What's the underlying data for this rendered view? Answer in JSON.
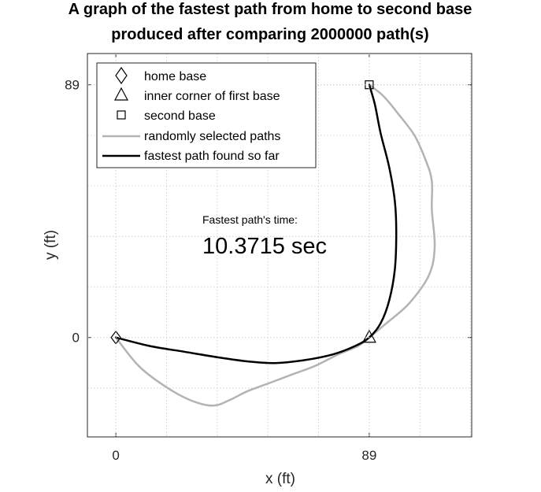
{
  "chart_data": {
    "type": "line",
    "title": "A graph of the fastest path from home to second base",
    "subtitle": "produced after comparing 2000000 path(s)",
    "xlabel": "x (ft)",
    "ylabel": "y (ft)",
    "xlim": [
      -10,
      125
    ],
    "ylim": [
      -35,
      100
    ],
    "xticks": [
      0,
      89
    ],
    "yticks": [
      0,
      89
    ],
    "xtick_labels": [
      "0",
      "89"
    ],
    "ytick_labels": [
      "0",
      "89"
    ],
    "grid": "dotted",
    "legend_position": "top-left",
    "markers": [
      {
        "name": "home base",
        "shape": "diamond",
        "x": 0,
        "y": 0
      },
      {
        "name": "inner corner of first base",
        "shape": "triangle",
        "x": 89,
        "y": 0
      },
      {
        "name": "second base",
        "shape": "square",
        "x": 89,
        "y": 89
      }
    ],
    "series": [
      {
        "name": "randomly selected paths",
        "color": "#b3b3b3",
        "points": [
          [
            0,
            0
          ],
          [
            8,
            -10
          ],
          [
            17,
            -17
          ],
          [
            26,
            -22
          ],
          [
            34,
            -24
          ],
          [
            40,
            -22
          ],
          [
            46,
            -19
          ],
          [
            54,
            -16
          ],
          [
            62,
            -13
          ],
          [
            70,
            -10
          ],
          [
            78,
            -6
          ],
          [
            85,
            -3
          ],
          [
            89,
            0
          ],
          [
            95,
            5
          ],
          [
            103,
            12
          ],
          [
            110,
            22
          ],
          [
            112,
            32
          ],
          [
            111,
            45
          ],
          [
            111,
            55
          ],
          [
            109,
            62
          ],
          [
            105,
            71
          ],
          [
            99,
            79
          ],
          [
            94,
            85
          ],
          [
            89,
            89
          ]
        ]
      },
      {
        "name": "fastest path found so far",
        "color": "#000000",
        "points": [
          [
            0,
            0
          ],
          [
            12,
            -3
          ],
          [
            24,
            -5
          ],
          [
            36,
            -7
          ],
          [
            47,
            -8.5
          ],
          [
            56,
            -9
          ],
          [
            66,
            -8
          ],
          [
            76,
            -6
          ],
          [
            84,
            -3
          ],
          [
            89,
            0
          ],
          [
            93,
            5
          ],
          [
            96,
            13
          ],
          [
            98,
            24
          ],
          [
            98.5,
            37
          ],
          [
            98,
            48
          ],
          [
            96,
            60
          ],
          [
            93,
            72
          ],
          [
            91,
            82
          ],
          [
            89,
            89
          ]
        ]
      }
    ],
    "annotation": {
      "label": "Fastest path's time:",
      "value": "10.3715 sec"
    }
  },
  "colors": {
    "background": "#ffffff",
    "axes_box": "#262626",
    "grid": "#c8c8c8",
    "random_path": "#b3b3b3",
    "fastest_path": "#000000"
  }
}
